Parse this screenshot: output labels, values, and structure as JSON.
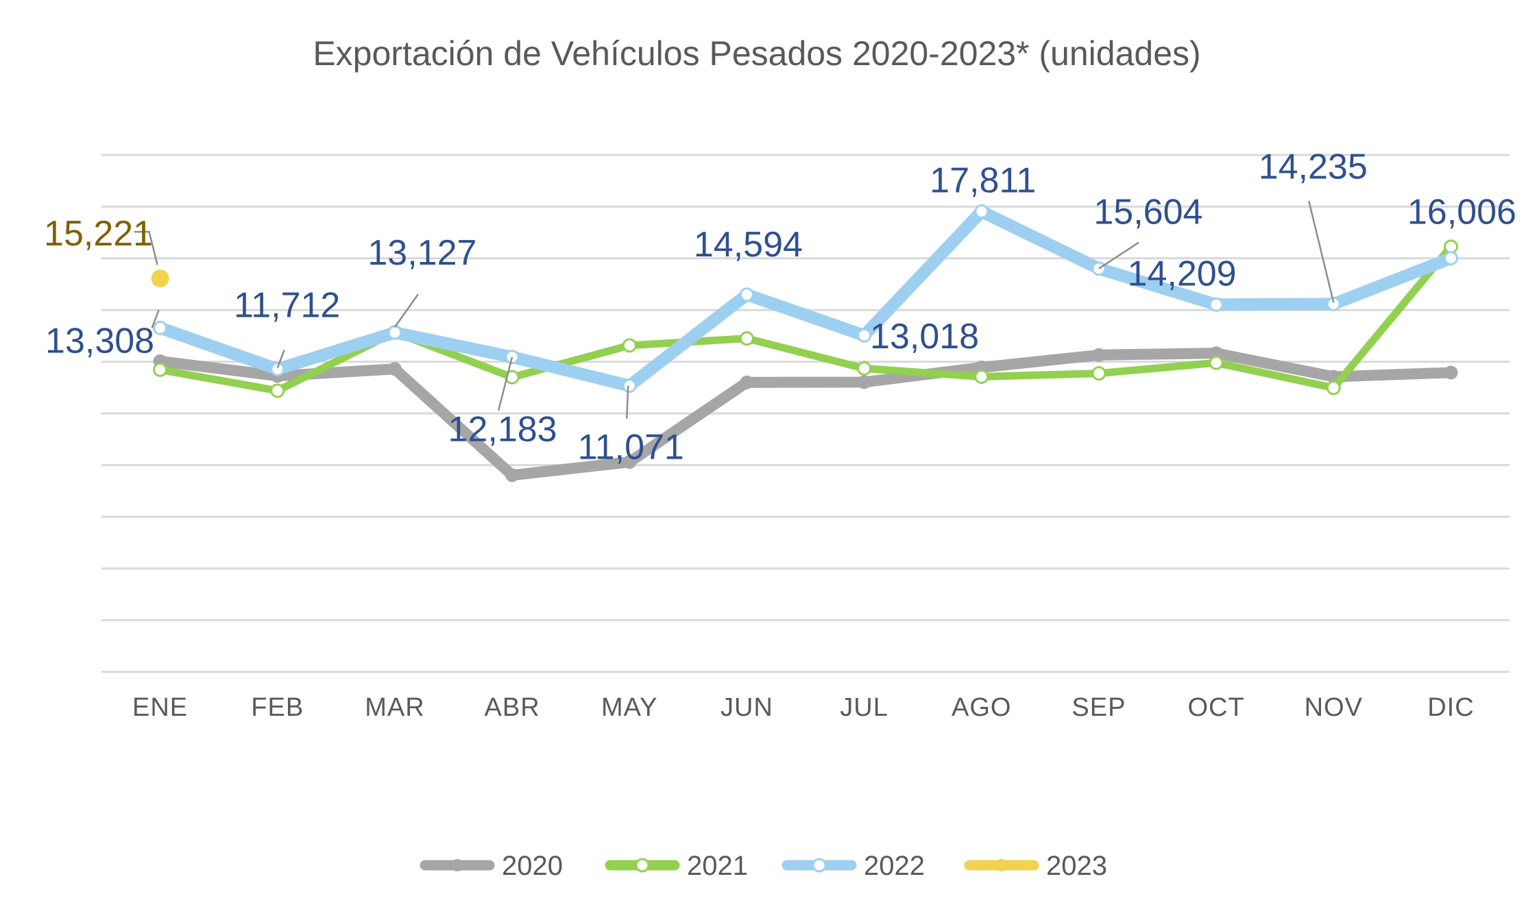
{
  "chart_data": {
    "type": "line",
    "title": "Exportación de Vehículos Pesados 2020-2023* (unidades)",
    "xlabel": "",
    "ylabel": "",
    "categories": [
      "ENE",
      "FEB",
      "MAR",
      "ABR",
      "MAY",
      "JUN",
      "JUL",
      "AGO",
      "SEP",
      "OCT",
      "NOV",
      "DIC"
    ],
    "ylim": [
      0,
      20000
    ],
    "grid": true,
    "legend_position": "bottom",
    "series": [
      {
        "name": "2020",
        "color": "#A6A6A6",
        "values": [
          12020,
          11450,
          11720,
          7610,
          8120,
          11200,
          11210,
          11780,
          12260,
          12330,
          11420,
          11580
        ]
      },
      {
        "name": "2021",
        "color": "#92D050",
        "values": [
          11690,
          10880,
          13140,
          11400,
          12630,
          12900,
          11740,
          11420,
          11550,
          11960,
          10990,
          16450
        ]
      },
      {
        "name": "2022",
        "color": "#9DCFF1",
        "values": [
          13308,
          11712,
          13127,
          12183,
          11071,
          14594,
          13018,
          17811,
          15604,
          14209,
          14235,
          16006
        ],
        "labels": [
          "13,308",
          "11,712",
          "13,127",
          "12,183",
          "11,071",
          "14,594",
          "13,018",
          "17,811",
          "15,604",
          "14,209",
          "14,235",
          "16,006"
        ]
      },
      {
        "name": "2023",
        "color": "#F2D34F",
        "values": [
          15221,
          null,
          null,
          null,
          null,
          null,
          null,
          null,
          null,
          null,
          null,
          null
        ],
        "labels": [
          "15,221"
        ]
      }
    ]
  }
}
